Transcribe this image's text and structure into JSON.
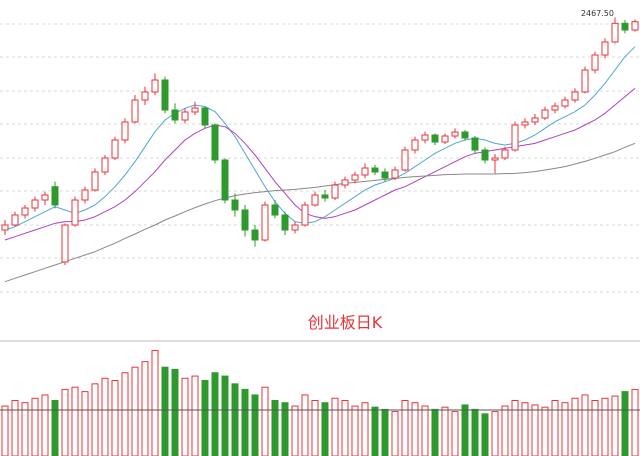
{
  "chart_data": {
    "type": "candlestick",
    "title": "创业板日K",
    "max_label": "2467.50",
    "ylim": [
      1650,
      2496
    ],
    "vlim": [
      0,
      100
    ],
    "up_color": "#e8333a",
    "down_color": "#2e9a2e",
    "candles": [
      [
        1830,
        1860,
        1815,
        1845
      ],
      [
        1845,
        1885,
        1840,
        1875
      ],
      [
        1875,
        1905,
        1865,
        1896
      ],
      [
        1896,
        1930,
        1885,
        1920
      ],
      [
        1920,
        1945,
        1905,
        1935
      ],
      [
        1960,
        1975,
        1895,
        1905
      ],
      [
        1734,
        1850,
        1725,
        1845
      ],
      [
        1845,
        1930,
        1840,
        1920
      ],
      [
        1920,
        1960,
        1910,
        1950
      ],
      [
        1950,
        2015,
        1945,
        2004
      ],
      [
        2004,
        2055,
        1995,
        2046
      ],
      [
        2046,
        2110,
        2040,
        2100
      ],
      [
        2100,
        2165,
        2090,
        2154
      ],
      [
        2154,
        2235,
        2150,
        2220
      ],
      [
        2220,
        2260,
        2205,
        2244
      ],
      [
        2244,
        2300,
        2235,
        2280
      ],
      [
        2280,
        2290,
        2180,
        2190
      ],
      [
        2190,
        2210,
        2150,
        2160
      ],
      [
        2160,
        2195,
        2150,
        2184
      ],
      [
        2184,
        2215,
        2175,
        2196
      ],
      [
        2196,
        2200,
        2135,
        2145
      ],
      [
        2145,
        2150,
        2030,
        2040
      ],
      [
        2040,
        2045,
        1910,
        1920
      ],
      [
        1920,
        1940,
        1870,
        1890
      ],
      [
        1890,
        1905,
        1810,
        1830
      ],
      [
        1830,
        1845,
        1780,
        1800
      ],
      [
        1800,
        1915,
        1795,
        1905
      ],
      [
        1905,
        1920,
        1865,
        1875
      ],
      [
        1875,
        1885,
        1815,
        1830
      ],
      [
        1830,
        1855,
        1820,
        1845
      ],
      [
        1845,
        1915,
        1840,
        1905
      ],
      [
        1905,
        1945,
        1900,
        1935
      ],
      [
        1935,
        1950,
        1915,
        1926
      ],
      [
        1926,
        1975,
        1920,
        1965
      ],
      [
        1965,
        1990,
        1955,
        1980
      ],
      [
        1980,
        2005,
        1970,
        1995
      ],
      [
        1995,
        2030,
        1985,
        2016
      ],
      [
        2016,
        2025,
        1995,
        2004
      ],
      [
        2004,
        2015,
        1975,
        1986
      ],
      [
        1986,
        2020,
        1980,
        2010
      ],
      [
        2010,
        2080,
        2005,
        2070
      ],
      [
        2070,
        2110,
        2060,
        2100
      ],
      [
        2100,
        2125,
        2090,
        2115
      ],
      [
        2115,
        2120,
        2085,
        2094
      ],
      [
        2094,
        2120,
        2088,
        2112
      ],
      [
        2112,
        2135,
        2105,
        2124
      ],
      [
        2124,
        2130,
        2098,
        2106
      ],
      [
        2106,
        2112,
        2060,
        2070
      ],
      [
        2070,
        2078,
        2030,
        2040
      ],
      [
        2040,
        2058,
        2000,
        2046
      ],
      [
        2046,
        2080,
        2040,
        2070
      ],
      [
        2070,
        2155,
        2065,
        2145
      ],
      [
        2145,
        2165,
        2135,
        2154
      ],
      [
        2154,
        2178,
        2145,
        2166
      ],
      [
        2166,
        2200,
        2160,
        2190
      ],
      [
        2190,
        2212,
        2180,
        2202
      ],
      [
        2202,
        2230,
        2195,
        2220
      ],
      [
        2220,
        2255,
        2212,
        2244
      ],
      [
        2244,
        2320,
        2240,
        2310
      ],
      [
        2310,
        2365,
        2300,
        2355
      ],
      [
        2355,
        2405,
        2345,
        2394
      ],
      [
        2394,
        2467.5,
        2390,
        2450
      ],
      [
        2450,
        2460,
        2420,
        2430
      ],
      [
        2430,
        2462,
        2425,
        2455
      ]
    ],
    "volumes": [
      45,
      50,
      48,
      52,
      55,
      50,
      60,
      62,
      58,
      65,
      70,
      68,
      75,
      80,
      85,
      95,
      80,
      78,
      70,
      72,
      68,
      75,
      72,
      65,
      60,
      55,
      62,
      50,
      48,
      45,
      55,
      50,
      48,
      52,
      50,
      45,
      48,
      44,
      42,
      40,
      50,
      48,
      45,
      42,
      44,
      40,
      46,
      42,
      38,
      40,
      45,
      50,
      48,
      46,
      44,
      50,
      48,
      52,
      55,
      50,
      52,
      54,
      58,
      60
    ],
    "lines": [
      {
        "color": "#4fa6d8",
        "values": [
          1830,
          1840,
          1855,
          1870,
          1885,
          1900,
          1890,
          1880,
          1890,
          1905,
          1930,
          1960,
          1995,
          2035,
          2080,
          2125,
          2160,
          2180,
          2195,
          2205,
          2200,
          2185,
          2150,
          2110,
          2060,
          2010,
          1960,
          1915,
          1880,
          1855,
          1850,
          1855,
          1870,
          1890,
          1910,
          1930,
          1950,
          1965,
          1975,
          1985,
          2000,
          2020,
          2040,
          2060,
          2075,
          2090,
          2100,
          2105,
          2100,
          2090,
          2085,
          2090,
          2100,
          2115,
          2135,
          2155,
          2170,
          2185,
          2205,
          2235,
          2270,
          2310,
          2350,
          2380
        ]
      },
      {
        "color": "#b040c0",
        "values": [
          1800,
          1810,
          1820,
          1830,
          1840,
          1850,
          1855,
          1855,
          1860,
          1870,
          1885,
          1900,
          1920,
          1945,
          1975,
          2005,
          2040,
          2070,
          2100,
          2120,
          2135,
          2145,
          2140,
          2120,
          2090,
          2055,
          2015,
          1975,
          1940,
          1905,
          1880,
          1870,
          1865,
          1870,
          1880,
          1890,
          1905,
          1920,
          1935,
          1950,
          1960,
          1975,
          1990,
          2005,
          2020,
          2035,
          2050,
          2060,
          2065,
          2070,
          2075,
          2080,
          2085,
          2090,
          2100,
          2110,
          2120,
          2130,
          2145,
          2160,
          2180,
          2205,
          2230,
          2255
        ]
      },
      {
        "color": "#888888",
        "values": [
          1675,
          1685,
          1695,
          1705,
          1715,
          1725,
          1735,
          1745,
          1755,
          1765,
          1778,
          1790,
          1805,
          1818,
          1832,
          1845,
          1860,
          1872,
          1885,
          1897,
          1908,
          1918,
          1926,
          1933,
          1938,
          1942,
          1945,
          1948,
          1950,
          1952,
          1955,
          1958,
          1962,
          1966,
          1970,
          1973,
          1976,
          1979,
          1982,
          1985,
          1988,
          1990,
          1992,
          1994,
          1996,
          1997,
          1998,
          1998,
          1998,
          1998,
          1999,
          2000,
          2002,
          2005,
          2010,
          2015,
          2020,
          2028,
          2036,
          2045,
          2055,
          2065,
          2078,
          2090
        ]
      }
    ]
  }
}
